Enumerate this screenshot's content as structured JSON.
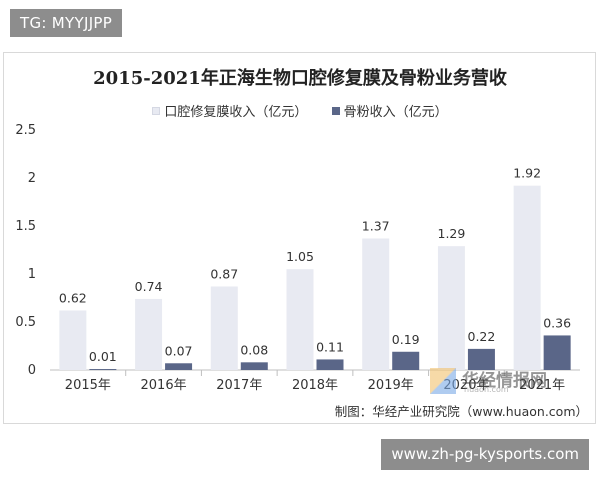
{
  "top_badge": "TG: MYYJJPP",
  "bottom_badge": "www.zh-pg-kysports.com",
  "source": "制图：华经产业研究院（www.huaon.com）",
  "watermark": {
    "text": "华经情报网",
    "sub": "huaon.com"
  },
  "colors": {
    "series_1": "#e8eaf2",
    "series_2": "#5a6688",
    "axis": "#bfbfbf",
    "text": "#333333"
  },
  "chart_data": {
    "type": "bar",
    "title": "2015-2021年正海生物口腔修复膜及骨粉业务营收",
    "categories": [
      "2015年",
      "2016年",
      "2017年",
      "2018年",
      "2019年",
      "2020年",
      "2021年"
    ],
    "series": [
      {
        "name": "口腔修复膜收入（亿元）",
        "values": [
          0.62,
          0.74,
          0.87,
          1.05,
          1.37,
          1.29,
          1.92
        ]
      },
      {
        "name": "骨粉收入（亿元）",
        "values": [
          0.01,
          0.07,
          0.08,
          0.11,
          0.19,
          0.22,
          0.36
        ]
      }
    ],
    "yticks": [
      "0",
      "0.5",
      "1",
      "1.5",
      "2",
      "2.5"
    ],
    "ylim": [
      0,
      2.5
    ],
    "grid": false,
    "legend": "top-center"
  }
}
